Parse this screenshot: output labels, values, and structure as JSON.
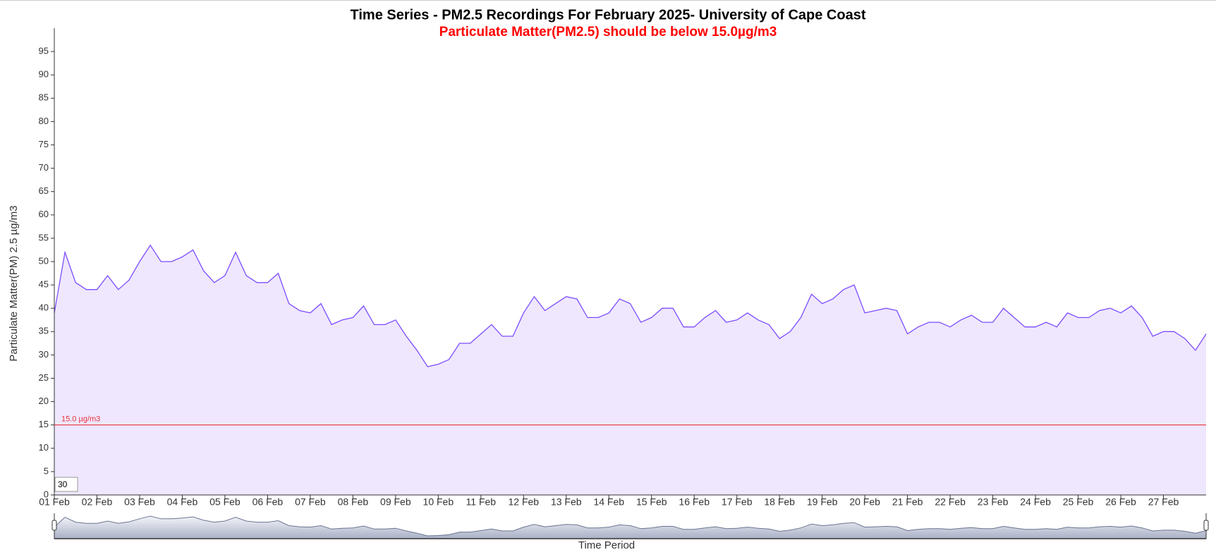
{
  "chart_data": {
    "type": "area",
    "title": "Time Series - PM2.5 Recordings For February 2025- University of Cape Coast",
    "subtitle": "Particulate Matter(PM2.5) should be below 15.0µg/m3",
    "y_label": "Particulate Matter(PM) 2.5 µg/m3",
    "x_label": "Time Period",
    "rolling_period": "30",
    "color": "#7c4dff",
    "fill": "#efe7fd",
    "threshold": {
      "value": 15,
      "label": "15.0 µg/m3",
      "color": "#e8323c"
    },
    "ylim": [
      0,
      100
    ],
    "yticks": [
      0,
      5,
      10,
      15,
      20,
      25,
      30,
      35,
      40,
      45,
      50,
      55,
      60,
      65,
      70,
      75,
      80,
      85,
      90,
      95
    ],
    "xlim": [
      0,
      27
    ],
    "xticks": [
      {
        "value": 0,
        "label": "01 Feb"
      },
      {
        "value": 1,
        "label": "02 Feb"
      },
      {
        "value": 2,
        "label": "03 Feb"
      },
      {
        "value": 3,
        "label": "04 Feb"
      },
      {
        "value": 4,
        "label": "05 Feb"
      },
      {
        "value": 5,
        "label": "06 Feb"
      },
      {
        "value": 6,
        "label": "07 Feb"
      },
      {
        "value": 7,
        "label": "08 Feb"
      },
      {
        "value": 8,
        "label": "09 Feb"
      },
      {
        "value": 9,
        "label": "10 Feb"
      },
      {
        "value": 10,
        "label": "11 Feb"
      },
      {
        "value": 11,
        "label": "12 Feb"
      },
      {
        "value": 12,
        "label": "13 Feb"
      },
      {
        "value": 13,
        "label": "14 Feb"
      },
      {
        "value": 14,
        "label": "15 Feb"
      },
      {
        "value": 15,
        "label": "16 Feb"
      },
      {
        "value": 16,
        "label": "17 Feb"
      },
      {
        "value": 17,
        "label": "18 Feb"
      },
      {
        "value": 18,
        "label": "19 Feb"
      },
      {
        "value": 19,
        "label": "20 Feb"
      },
      {
        "value": 20,
        "label": "21 Feb"
      },
      {
        "value": 21,
        "label": "22 Feb"
      },
      {
        "value": 22,
        "label": "23 Feb"
      },
      {
        "value": 23,
        "label": "24 Feb"
      },
      {
        "value": 24,
        "label": "25 Feb"
      },
      {
        "value": 25,
        "label": "26 Feb"
      },
      {
        "value": 26,
        "label": "27 Feb"
      }
    ],
    "x": [
      0,
      0.25,
      0.5,
      0.75,
      1,
      1.25,
      1.5,
      1.75,
      2,
      2.25,
      2.5,
      2.75,
      3,
      3.25,
      3.5,
      3.75,
      4,
      4.25,
      4.5,
      4.75,
      5,
      5.25,
      5.5,
      5.75,
      6,
      6.25,
      6.5,
      6.75,
      7,
      7.25,
      7.5,
      7.75,
      8,
      8.25,
      8.5,
      8.75,
      9,
      9.25,
      9.5,
      9.75,
      10,
      10.25,
      10.5,
      10.75,
      11,
      11.25,
      11.5,
      11.75,
      12,
      12.25,
      12.5,
      12.75,
      13,
      13.25,
      13.5,
      13.75,
      14,
      14.25,
      14.5,
      14.75,
      15,
      15.25,
      15.5,
      15.75,
      16,
      16.25,
      16.5,
      16.75,
      17,
      17.25,
      17.5,
      17.75,
      18,
      18.25,
      18.5,
      18.75,
      19,
      19.25,
      19.5,
      19.75,
      20,
      20.25,
      20.5,
      20.75,
      21,
      21.25,
      21.5,
      21.75,
      22,
      22.25,
      22.5,
      22.75,
      23,
      23.25,
      23.5,
      23.75,
      24,
      24.25,
      24.5,
      24.75,
      25,
      25.25,
      25.5,
      25.75,
      26,
      26.25,
      26.5,
      26.75,
      27
    ],
    "values": [
      39,
      52,
      45.5,
      44,
      44,
      47,
      44,
      46,
      50,
      53.5,
      50,
      50,
      51,
      52.5,
      48,
      45.5,
      47,
      52,
      47,
      45.5,
      45.5,
      47.5,
      41,
      39.5,
      39,
      41,
      36.5,
      37.5,
      38,
      40.5,
      36.5,
      36.5,
      37.5,
      34,
      31,
      27.5,
      28,
      29,
      32.5,
      32.5,
      34.5,
      36.5,
      34,
      34,
      39,
      42.5,
      39.5,
      41,
      42.5,
      42,
      38,
      38,
      39,
      42,
      41,
      37,
      38,
      40,
      40,
      36,
      36,
      38,
      39.5,
      37,
      37.5,
      39,
      37.5,
      36.5,
      33.5,
      35,
      38,
      43,
      41,
      42,
      44,
      45,
      39,
      39.5,
      40,
      39.5,
      34.5,
      36,
      37,
      37,
      36,
      37.5,
      38.5,
      37,
      37,
      40,
      38,
      36,
      36,
      37,
      36,
      39,
      38,
      38,
      39.5,
      40,
      39,
      40.5,
      38,
      34,
      35,
      35,
      33.5,
      31,
      34.5
    ]
  }
}
